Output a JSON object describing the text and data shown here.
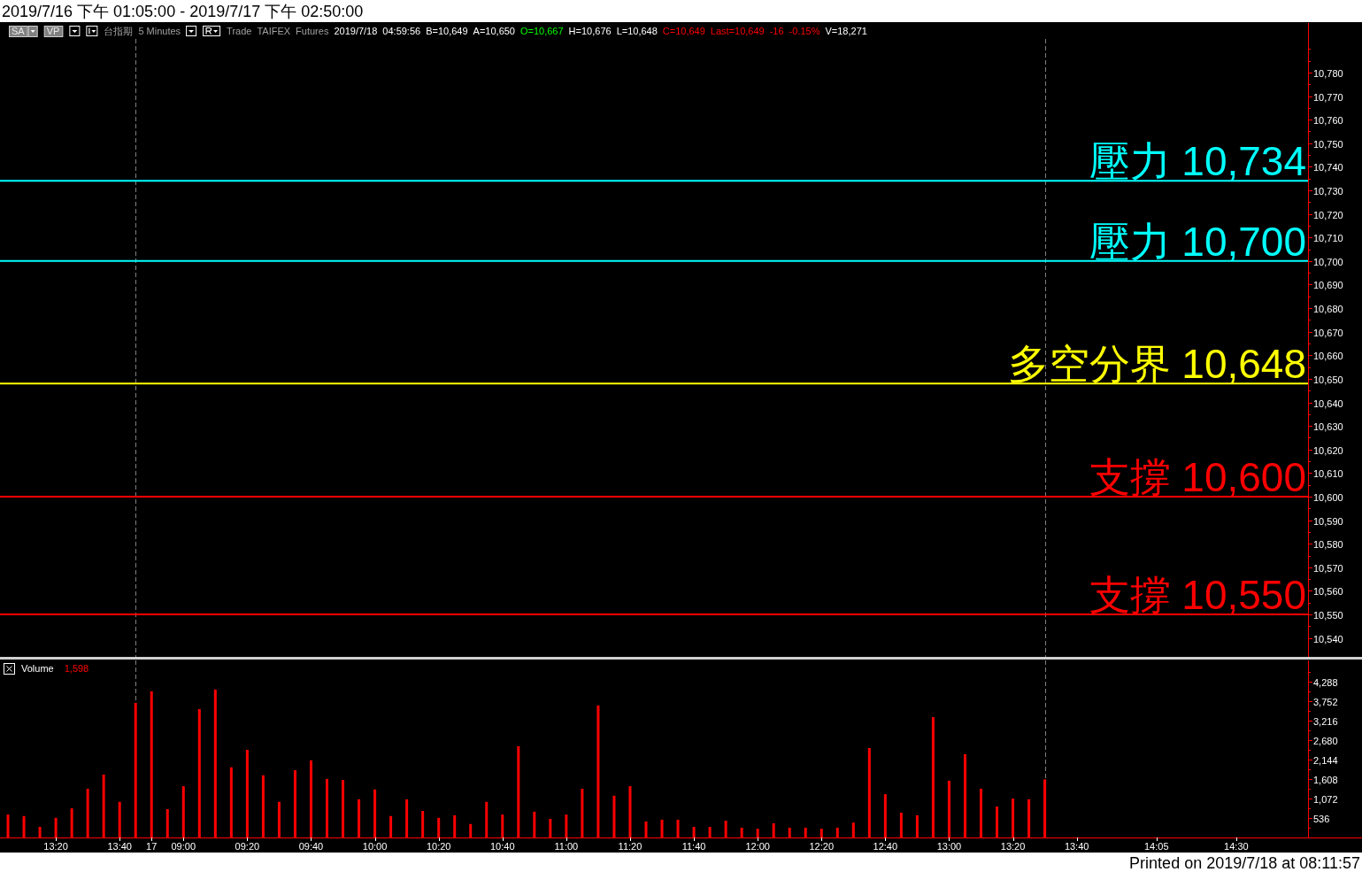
{
  "chart_data": [
    {
      "type": "line",
      "title": "2019/7/16 下午 01:05:00 - 2019/7/17 下午 02:50:00",
      "annotations": [
        "SA",
        "VP",
        "台指期",
        "5 Minutes",
        "Trade",
        "TAIFEX",
        "Futures",
        "2019/7/18",
        "04:59:56",
        "B=10,649",
        "A=10,650",
        "O=10,667",
        "H=10,676",
        "L=10,648",
        "C=10,649",
        "Last=10,649",
        "-16",
        "-0.15%",
        "V=18,271"
      ],
      "categories": [
        null,
        null,
        null,
        null,
        null,
        null,
        null,
        null,
        null,
        null,
        null,
        null,
        null,
        null,
        null,
        null,
        null,
        null,
        null,
        null,
        null,
        null,
        null,
        null,
        null,
        null,
        null,
        null,
        null,
        null,
        null,
        null,
        null,
        null,
        null,
        null,
        null,
        null,
        null,
        null,
        null,
        null,
        null,
        null,
        null,
        null,
        null,
        null,
        null,
        null,
        null,
        null,
        null,
        null,
        null,
        null,
        null,
        null,
        null,
        null,
        null,
        null,
        null,
        null,
        null,
        null,
        null,
        null,
        null,
        null,
        null,
        null,
        null,
        null,
        null,
        null,
        null,
        null,
        null,
        null,
        null,
        null
      ],
      "ylim": [
        10532,
        10801
      ],
      "yticks": [
        {
          "value": 10540,
          "label": "10,540"
        },
        {
          "value": 10550,
          "label": "10,550"
        },
        {
          "value": 10560,
          "label": "10,560"
        },
        {
          "value": 10570,
          "label": "10,570"
        },
        {
          "value": 10580,
          "label": "10,580"
        },
        {
          "value": 10590,
          "label": "10,590"
        },
        {
          "value": 10600,
          "label": "10,600"
        },
        {
          "value": 10610,
          "label": "10,610"
        },
        {
          "value": 10620,
          "label": "10,620"
        },
        {
          "value": 10630,
          "label": "10,630"
        },
        {
          "value": 10640,
          "label": "10,640"
        },
        {
          "value": 10650,
          "label": "10,650"
        },
        {
          "value": 10660,
          "label": "10,660"
        },
        {
          "value": 10670,
          "label": "10,670"
        },
        {
          "value": 10680,
          "label": "10,680"
        },
        {
          "value": 10690,
          "label": "10,690"
        },
        {
          "value": 10700,
          "label": "10,700"
        },
        {
          "value": 10710,
          "label": "10,710"
        },
        {
          "value": 10720,
          "label": "10,720"
        },
        {
          "value": 10730,
          "label": "10,730"
        },
        {
          "value": 10740,
          "label": "10,740"
        },
        {
          "value": 10750,
          "label": "10,750"
        },
        {
          "value": 10760,
          "label": "10,760"
        },
        {
          "value": 10770,
          "label": "10,770"
        },
        {
          "value": 10780,
          "label": "10,780"
        },
        {
          "value": 10545,
          "label": null
        },
        {
          "value": 10555,
          "label": null
        },
        {
          "value": 10565,
          "label": null
        },
        {
          "value": 10575,
          "label": null
        },
        {
          "value": 10585,
          "label": null
        },
        {
          "value": 10595,
          "label": null
        },
        {
          "value": 10605,
          "label": null
        },
        {
          "value": 10615,
          "label": null
        },
        {
          "value": 10625,
          "label": null
        },
        {
          "value": 10635,
          "label": null
        },
        {
          "value": 10645,
          "label": null
        },
        {
          "value": 10655,
          "label": null
        },
        {
          "value": 10665,
          "label": null
        },
        {
          "value": 10675,
          "label": null
        },
        {
          "value": 10685,
          "label": null
        },
        {
          "value": 10695,
          "label": null
        },
        {
          "value": 10705,
          "label": null
        },
        {
          "value": 10715,
          "label": null
        },
        {
          "value": 10725,
          "label": null
        },
        {
          "value": 10735,
          "label": null
        },
        {
          "value": 10745,
          "label": null
        },
        {
          "value": 10755,
          "label": null
        },
        {
          "value": 10765,
          "label": null
        },
        {
          "value": 10775,
          "label": null
        },
        {
          "value": 10785,
          "label": null
        },
        {
          "value": 10790,
          "label": null
        }
      ],
      "ref_lines": [
        {
          "axis": "y",
          "value": 10734,
          "label": "壓力 10,734",
          "color": "#00ffff"
        },
        {
          "axis": "y",
          "value": 10700,
          "label": "壓力 10,700",
          "color": "#00ffff"
        },
        {
          "axis": "y",
          "value": 10648,
          "label": "多空分界 10,648",
          "color": "#ffff00"
        },
        {
          "axis": "y",
          "value": 10600,
          "label": "支撐 10,600",
          "color": "#ff0000"
        },
        {
          "axis": "y",
          "value": 10550,
          "label": "支撐 10,550",
          "color": "#ff0000"
        }
      ],
      "tick_labels": "y"
    },
    {
      "type": "bar",
      "categories": [
        null,
        null,
        null,
        "13:20",
        null,
        null,
        null,
        "13:40",
        null,
        "17",
        null,
        "09:00",
        null,
        null,
        null,
        "09:20",
        null,
        null,
        null,
        "09:40",
        null,
        null,
        null,
        "10:00",
        null,
        null,
        null,
        "10:20",
        null,
        null,
        null,
        "10:40",
        null,
        null,
        null,
        "11:00",
        null,
        null,
        null,
        "11:20",
        null,
        null,
        null,
        "11:40",
        null,
        null,
        null,
        "12:00",
        null,
        null,
        null,
        "12:20",
        null,
        null,
        null,
        "12:40",
        null,
        null,
        null,
        "13:00",
        null,
        null,
        null,
        "13:20",
        null,
        null,
        null,
        "13:40",
        null,
        null,
        null,
        null,
        "14:05",
        null,
        null,
        null,
        null,
        "14:30",
        null,
        null,
        null,
        null
      ],
      "series": [
        {
          "name": "Volume",
          "color": "#ff0000",
          "values": [
            630,
            590,
            290,
            540,
            800,
            1340,
            1730,
            980,
            3700,
            4020,
            780,
            1410,
            3530,
            4070,
            1930,
            2410,
            1710,
            980,
            1850,
            2120,
            1610,
            1580,
            1050,
            1320,
            590,
            1050,
            730,
            540,
            610,
            370,
            980,
            630,
            2510,
            710,
            510,
            630,
            1340,
            3630,
            1150,
            1410,
            440,
            490,
            490,
            290,
            290,
            460,
            270,
            240,
            390,
            270,
            270,
            240,
            270,
            410,
            2460,
            1190,
            680,
            610,
            3310,
            1560,
            2290,
            1340,
            850,
            1070,
            1050,
            1598,
            null,
            null,
            null,
            null,
            null,
            null,
            null,
            null,
            null,
            null,
            null,
            null,
            null,
            null,
            null,
            null
          ]
        }
      ],
      "ylim": [
        0,
        4870
      ],
      "yticks": [
        536,
        {
          "value": 1072,
          "label": "1,072"
        },
        {
          "value": 1608,
          "label": "1,608"
        },
        {
          "value": 2144,
          "label": "2,144"
        },
        {
          "value": 2680,
          "label": "2,680"
        },
        {
          "value": 3216,
          "label": "3,216"
        },
        {
          "value": 3752,
          "label": "3,752"
        },
        {
          "value": 4288,
          "label": "4,288"
        },
        {
          "value": 268,
          "label": null
        },
        {
          "value": 804,
          "label": null
        },
        {
          "value": 1340,
          "label": null
        },
        {
          "value": 1876,
          "label": null
        },
        {
          "value": 2412,
          "label": null
        },
        {
          "value": 2948,
          "label": null
        },
        {
          "value": 3484,
          "label": null
        },
        {
          "value": 4020,
          "label": null
        },
        {
          "value": 4556,
          "label": null
        }
      ],
      "legend": "top left",
      "annotations": [
        "1,598",
        "Printed on 2019/7/18 at 08:11:57"
      ]
    }
  ]
}
